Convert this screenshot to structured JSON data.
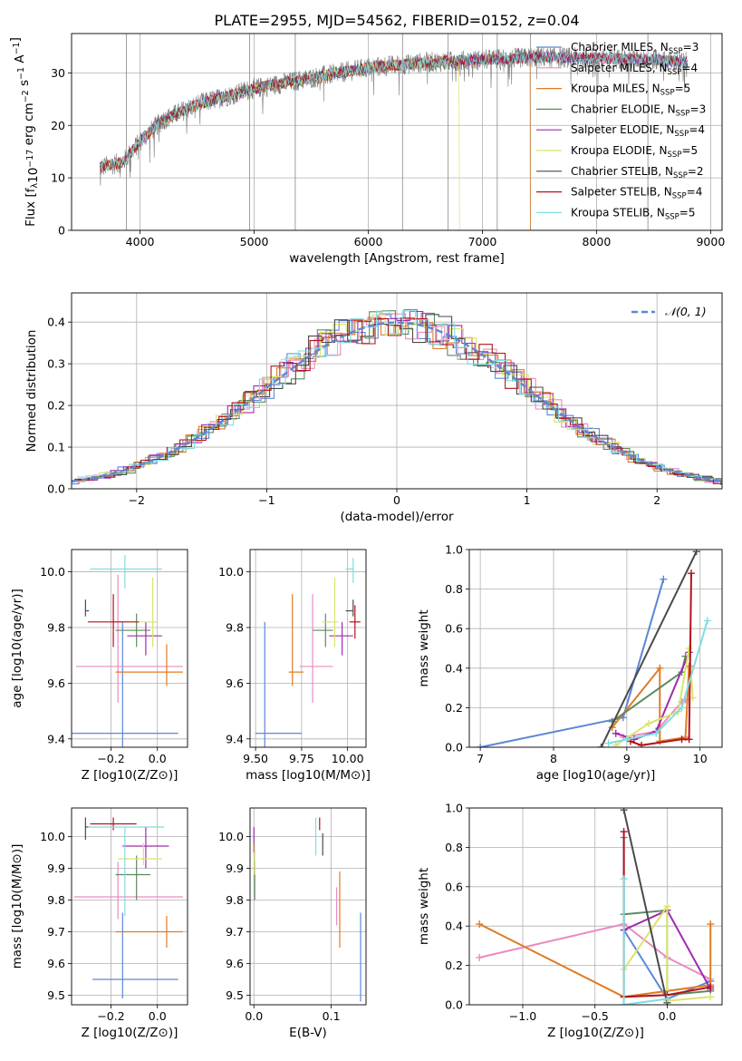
{
  "title": "PLATE=2955, MJD=54562, FIBERID=0152, z=0.04",
  "colors": {
    "Chabrier MILES": "#5b87d6",
    "Salpeter MILES": "#e98cc1",
    "Kroupa MILES": "#e07b25",
    "Chabrier ELODIE": "#5d8a5e",
    "Salpeter ELODIE": "#a02ab0",
    "Kroupa ELODIE": "#d8e56a",
    "Chabrier STELIB": "#4a4a4a",
    "Salpeter STELIB": "#b3131b",
    "Kroupa STELIB": "#7fdde0"
  },
  "chart_data": [
    {
      "id": "spectrum",
      "type": "line",
      "xlabel": "wavelength [Angstrom, rest frame]",
      "ylabel": "Flux [f_λ 10^-17 erg cm^-2 s^-1 A^-1]",
      "xlim": [
        3400,
        9100
      ],
      "ylim": [
        0,
        37.5
      ],
      "xticks": [
        "4000",
        "5000",
        "6000",
        "7000",
        "8000",
        "9000"
      ],
      "yticks": [
        "0",
        "10",
        "20",
        "30"
      ],
      "data_shape": [
        [
          3650,
          12
        ],
        [
          3850,
          13
        ],
        [
          4000,
          17
        ],
        [
          4200,
          21
        ],
        [
          4500,
          24
        ],
        [
          5000,
          27
        ],
        [
          5500,
          29
        ],
        [
          6000,
          31
        ],
        [
          6500,
          32
        ],
        [
          7000,
          32.5
        ],
        [
          7500,
          33
        ],
        [
          8000,
          32.8
        ],
        [
          8500,
          32.5
        ],
        [
          8800,
          32
        ]
      ],
      "data_xrange": [
        3650,
        8800
      ],
      "vlines_x": [
        3880,
        4960,
        5360,
        6300,
        6700,
        7130,
        7420,
        8450
      ],
      "legend": [
        {
          "label": "Chabrier MILES, N",
          "nssp": "3"
        },
        {
          "label": "Salpeter MILES, N",
          "nssp": "4"
        },
        {
          "label": "Kroupa MILES, N",
          "nssp": "5"
        },
        {
          "label": "Chabrier ELODIE, N",
          "nssp": "3"
        },
        {
          "label": "Salpeter ELODIE, N",
          "nssp": "4"
        },
        {
          "label": "Kroupa ELODIE, N",
          "nssp": "5"
        },
        {
          "label": "Chabrier STELIB, N",
          "nssp": "2"
        },
        {
          "label": "Salpeter STELIB, N",
          "nssp": "4"
        },
        {
          "label": "Kroupa STELIB, N",
          "nssp": "5"
        }
      ],
      "nssp_sub": "SSP"
    },
    {
      "id": "residuals",
      "type": "line",
      "xlabel": "(data-model)/error",
      "ylabel": "Normed distribution",
      "xlim": [
        -2.5,
        2.5
      ],
      "ylim": [
        0,
        0.47
      ],
      "xticks": [
        "−2",
        "−1",
        "0",
        "1",
        "2"
      ],
      "yticks": [
        "0.0",
        "0.1",
        "0.2",
        "0.3",
        "0.4"
      ],
      "legend": "𝒩(0, 1)",
      "bin_width": 0.1
    },
    {
      "id": "age-z",
      "type": "scatter",
      "xlabel": "Z [log10(Z/Z⊙)]",
      "ylabel": "age [log10(age/yr)]",
      "xlim": [
        -0.37,
        0.13
      ],
      "ylim": [
        9.37,
        10.08
      ],
      "xticks": [
        "−0.2",
        "0.0"
      ],
      "yticks": [
        "9.4",
        "9.6",
        "9.8",
        "10.0"
      ],
      "points": [
        {
          "model": "Chabrier MILES",
          "x": -0.15,
          "y": 9.42,
          "xerr": [
            0.23,
            0.24
          ],
          "yerr": [
            0.07,
            0.4
          ]
        },
        {
          "model": "Salpeter MILES",
          "x": -0.17,
          "y": 9.66,
          "xerr": [
            0.18,
            0.28
          ],
          "yerr": [
            0.13,
            0.33
          ]
        },
        {
          "model": "Kroupa MILES",
          "x": 0.04,
          "y": 9.64,
          "xerr": [
            0.22,
            0.07
          ],
          "yerr": [
            0.05,
            0.1
          ]
        },
        {
          "model": "Chabrier ELODIE",
          "x": -0.09,
          "y": 9.79,
          "xerr": [
            0.09,
            0.06
          ],
          "yerr": [
            0.06,
            0.06
          ]
        },
        {
          "model": "Salpeter ELODIE",
          "x": -0.05,
          "y": 9.77,
          "xerr": [
            0.08,
            0.07
          ],
          "yerr": [
            0.07,
            0.05
          ]
        },
        {
          "model": "Kroupa ELODIE",
          "x": -0.02,
          "y": 9.82,
          "xerr": [
            0.17,
            0.02
          ],
          "yerr": [
            0.09,
            0.16
          ]
        },
        {
          "model": "Chabrier STELIB",
          "x": -0.31,
          "y": 9.86,
          "xerr": [
            0.0,
            0.015
          ],
          "yerr": [
            0.02,
            0.04
          ]
        },
        {
          "model": "Salpeter STELIB",
          "x": -0.19,
          "y": 9.82,
          "xerr": [
            0.11,
            0.11
          ],
          "yerr": [
            0.09,
            0.1
          ]
        },
        {
          "model": "Kroupa STELIB",
          "x": -0.14,
          "y": 10.01,
          "xerr": [
            0.15,
            0.16
          ],
          "yerr": [
            0.07,
            0.05
          ]
        }
      ]
    },
    {
      "id": "age-mass",
      "type": "scatter",
      "xlabel": "mass [log10(M/M⊙)]",
      "xlim": [
        9.47,
        10.1
      ],
      "ylim": [
        9.37,
        10.08
      ],
      "xticks": [
        "9.50",
        "9.75",
        "10.00"
      ],
      "yticks": [
        "9.4",
        "9.6",
        "9.8",
        "10.0"
      ],
      "points": [
        {
          "model": "Chabrier MILES",
          "x": 9.55,
          "y": 9.42,
          "xerr": [
            0.05,
            0.2
          ],
          "yerr": [
            0.07,
            0.4
          ]
        },
        {
          "model": "Salpeter MILES",
          "x": 9.81,
          "y": 9.66,
          "xerr": [
            0.07,
            0.11
          ],
          "yerr": [
            0.13,
            0.26
          ]
        },
        {
          "model": "Kroupa MILES",
          "x": 9.7,
          "y": 9.64,
          "xerr": [
            0.02,
            0.06
          ],
          "yerr": [
            0.05,
            0.28
          ]
        },
        {
          "model": "Chabrier ELODIE",
          "x": 9.88,
          "y": 9.79,
          "xerr": [
            0.07,
            0.04
          ],
          "yerr": [
            0.06,
            0.06
          ]
        },
        {
          "model": "Salpeter ELODIE",
          "x": 9.97,
          "y": 9.77,
          "xerr": [
            0.07,
            0.06
          ],
          "yerr": [
            0.07,
            0.05
          ]
        },
        {
          "model": "Kroupa ELODIE",
          "x": 9.93,
          "y": 9.82,
          "xerr": [
            0.07,
            0.02
          ],
          "yerr": [
            0.09,
            0.16
          ]
        },
        {
          "model": "Chabrier STELIB",
          "x": 10.03,
          "y": 9.86,
          "xerr": [
            0.04,
            0.0
          ],
          "yerr": [
            0.02,
            0.04
          ]
        },
        {
          "model": "Salpeter STELIB",
          "x": 10.04,
          "y": 9.82,
          "xerr": [
            0.03,
            0.03
          ],
          "yerr": [
            0.06,
            0.06
          ]
        },
        {
          "model": "Kroupa STELIB",
          "x": 10.03,
          "y": 10.01,
          "xerr": [
            0.04,
            0.0
          ],
          "yerr": [
            0.05,
            0.04
          ]
        }
      ]
    },
    {
      "id": "weight-age",
      "type": "line",
      "xlabel": "age [log10(age/yr)]",
      "ylabel": "mass weight",
      "xlim": [
        6.85,
        10.3
      ],
      "ylim": [
        0,
        1
      ],
      "xticks": [
        "7",
        "8",
        "9",
        "10"
      ],
      "yticks": [
        "0.0",
        "0.2",
        "0.4",
        "0.6",
        "0.8",
        "1.0"
      ],
      "series": [
        {
          "model": "Chabrier MILES",
          "x": [
            7.0,
            8.95,
            9.5
          ],
          "y": [
            0.0,
            0.15,
            0.85
          ]
        },
        {
          "model": "Salpeter MILES",
          "x": [
            8.95,
            9.4,
            9.75,
            9.8
          ],
          "y": [
            0.05,
            0.08,
            0.23,
            0.24
          ]
        },
        {
          "model": "Kroupa MILES",
          "x": [
            8.8,
            9.45,
            9.45,
            9.8,
            9.85
          ],
          "y": [
            0.1,
            0.4,
            0.03,
            0.05,
            0.41
          ]
        },
        {
          "model": "Chabrier ELODIE",
          "x": [
            8.8,
            9.75,
            9.8
          ],
          "y": [
            0.13,
            0.38,
            0.46
          ]
        },
        {
          "model": "Salpeter ELODIE",
          "x": [
            8.85,
            9.1,
            9.4,
            9.85
          ],
          "y": [
            0.07,
            0.04,
            0.08,
            0.48
          ]
        },
        {
          "model": "Kroupa ELODIE",
          "x": [
            8.85,
            9.3,
            9.7,
            9.85,
            9.9
          ],
          "y": [
            0.01,
            0.12,
            0.18,
            0.5,
            0.25
          ]
        },
        {
          "model": "Chabrier STELIB",
          "x": [
            8.65,
            9.95
          ],
          "y": [
            0.0,
            0.99
          ]
        },
        {
          "model": "Salpeter STELIB",
          "x": [
            9.05,
            9.2,
            9.75,
            9.85,
            9.88
          ],
          "y": [
            0.03,
            0.01,
            0.04,
            0.04,
            0.88
          ]
        },
        {
          "model": "Kroupa STELIB",
          "x": [
            8.75,
            9.0,
            9.4,
            9.75,
            10.1
          ],
          "y": [
            0.02,
            0.04,
            0.07,
            0.2,
            0.64
          ]
        }
      ]
    },
    {
      "id": "mass-z",
      "type": "scatter",
      "xlabel": "Z [log10(Z/Z⊙)]",
      "ylabel": "mass [log10(M/M⊙)]",
      "xlim": [
        -0.37,
        0.13
      ],
      "ylim": [
        9.47,
        10.09
      ],
      "xticks": [
        "−0.2",
        "0.0"
      ],
      "yticks": [
        "9.5",
        "9.6",
        "9.7",
        "9.8",
        "9.9",
        "10.0"
      ],
      "points": [
        {
          "model": "Chabrier MILES",
          "x": -0.15,
          "y": 9.55,
          "xerr": [
            0.13,
            0.24
          ],
          "yerr": [
            0.06,
            0.21
          ]
        },
        {
          "model": "Salpeter MILES",
          "x": -0.17,
          "y": 9.81,
          "xerr": [
            0.19,
            0.28
          ],
          "yerr": [
            0.07,
            0.11
          ]
        },
        {
          "model": "Kroupa MILES",
          "x": 0.04,
          "y": 9.7,
          "xerr": [
            0.22,
            0.07
          ],
          "yerr": [
            0.05,
            0.05
          ]
        },
        {
          "model": "Chabrier ELODIE",
          "x": -0.09,
          "y": 9.88,
          "xerr": [
            0.09,
            0.06
          ],
          "yerr": [
            0.08,
            0.06
          ]
        },
        {
          "model": "Salpeter ELODIE",
          "x": -0.05,
          "y": 9.97,
          "xerr": [
            0.1,
            0.1
          ],
          "yerr": [
            0.07,
            0.06
          ]
        },
        {
          "model": "Kroupa ELODIE",
          "x": -0.06,
          "y": 9.93,
          "xerr": [
            0.11,
            0.08
          ],
          "yerr": [
            0.02,
            0.05
          ]
        },
        {
          "model": "Chabrier STELIB",
          "x": -0.31,
          "y": 10.03,
          "xerr": [
            0.0,
            0.02
          ],
          "yerr": [
            0.04,
            0.03
          ]
        },
        {
          "model": "Salpeter STELIB",
          "x": -0.19,
          "y": 10.04,
          "xerr": [
            0.1,
            0.1
          ],
          "yerr": [
            0.02,
            0.02
          ]
        },
        {
          "model": "Kroupa STELIB",
          "x": -0.14,
          "y": 10.03,
          "xerr": [
            0.16,
            0.17
          ],
          "yerr": [
            0.28,
            0.0
          ]
        }
      ]
    },
    {
      "id": "mass-ebv",
      "type": "scatter",
      "xlabel": "E(B-V)",
      "xlim": [
        -0.005,
        0.145
      ],
      "ylim": [
        9.47,
        10.09
      ],
      "xticks": [
        "0.0",
        "0.1"
      ],
      "yticks": [
        "9.5",
        "9.6",
        "9.7",
        "9.8",
        "9.9",
        "10.0"
      ],
      "points": [
        {
          "model": "Chabrier MILES",
          "x": 0.138,
          "y": 9.62,
          "yerr": [
            0.14,
            0.14
          ]
        },
        {
          "model": "Salpeter MILES",
          "x": 0.107,
          "y": 9.78,
          "yerr": [
            0.06,
            0.06
          ]
        },
        {
          "model": "Kroupa MILES",
          "x": 0.111,
          "y": 9.77,
          "yerr": [
            0.12,
            0.12
          ]
        },
        {
          "model": "Chabrier ELODIE",
          "x": 0.001,
          "y": 9.86,
          "yerr": [
            0.06,
            0.06
          ]
        },
        {
          "model": "Salpeter ELODIE",
          "x": 0.0,
          "y": 9.98,
          "yerr": [
            0.03,
            0.05
          ]
        },
        {
          "model": "Kroupa ELODIE",
          "x": 0.001,
          "y": 9.93,
          "yerr": [
            0.05,
            0.05
          ]
        },
        {
          "model": "Chabrier STELIB",
          "x": 0.089,
          "y": 9.98,
          "yerr": [
            0.04,
            0.03
          ]
        },
        {
          "model": "Salpeter STELIB",
          "x": 0.085,
          "y": 10.04,
          "yerr": [
            0.02,
            0.02
          ]
        },
        {
          "model": "Kroupa STELIB",
          "x": 0.08,
          "y": 10.0,
          "yerr": [
            0.06,
            0.06
          ]
        }
      ]
    },
    {
      "id": "weight-z",
      "type": "line",
      "xlabel": "Z [log10(Z/Z⊙)]",
      "ylabel": "mass weight",
      "xlim": [
        -1.37,
        0.38
      ],
      "ylim": [
        0,
        1
      ],
      "xticks": [
        "−1.0",
        "−0.5",
        "0.0"
      ],
      "yticks": [
        "0.0",
        "0.2",
        "0.4",
        "0.6",
        "0.8",
        "1.0"
      ],
      "series": [
        {
          "model": "Chabrier MILES",
          "x": [
            -0.3,
            -0.3,
            0.0,
            0.3
          ],
          "y": [
            0.85,
            0.38,
            0.03,
            0.12
          ]
        },
        {
          "model": "Salpeter MILES",
          "x": [
            -1.3,
            -0.3,
            0.0,
            0.3
          ],
          "y": [
            0.24,
            0.41,
            0.24,
            0.13
          ]
        },
        {
          "model": "Kroupa MILES",
          "x": [
            -1.3,
            -0.3,
            0.3,
            0.3
          ],
          "y": [
            0.41,
            0.04,
            0.1,
            0.41
          ]
        },
        {
          "model": "Chabrier ELODIE",
          "x": [
            -0.3,
            0.0,
            0.0,
            0.3
          ],
          "y": [
            0.46,
            0.48,
            0.05,
            0.07
          ]
        },
        {
          "model": "Salpeter ELODIE",
          "x": [
            -0.3,
            0.0,
            0.3
          ],
          "y": [
            0.38,
            0.48,
            0.08
          ]
        },
        {
          "model": "Kroupa ELODIE",
          "x": [
            -0.3,
            0.0,
            0.0,
            0.3
          ],
          "y": [
            0.18,
            0.5,
            0.02,
            0.04
          ]
        },
        {
          "model": "Chabrier STELIB",
          "x": [
            -0.3,
            0.0
          ],
          "y": [
            0.99,
            0.01
          ]
        },
        {
          "model": "Salpeter STELIB",
          "x": [
            -0.3,
            -0.3,
            0.0,
            0.3
          ],
          "y": [
            0.88,
            0.04,
            0.05,
            0.09
          ]
        },
        {
          "model": "Kroupa STELIB",
          "x": [
            -0.3,
            -0.3,
            0.0
          ],
          "y": [
            0.64,
            0.0,
            0.03
          ]
        }
      ]
    }
  ]
}
